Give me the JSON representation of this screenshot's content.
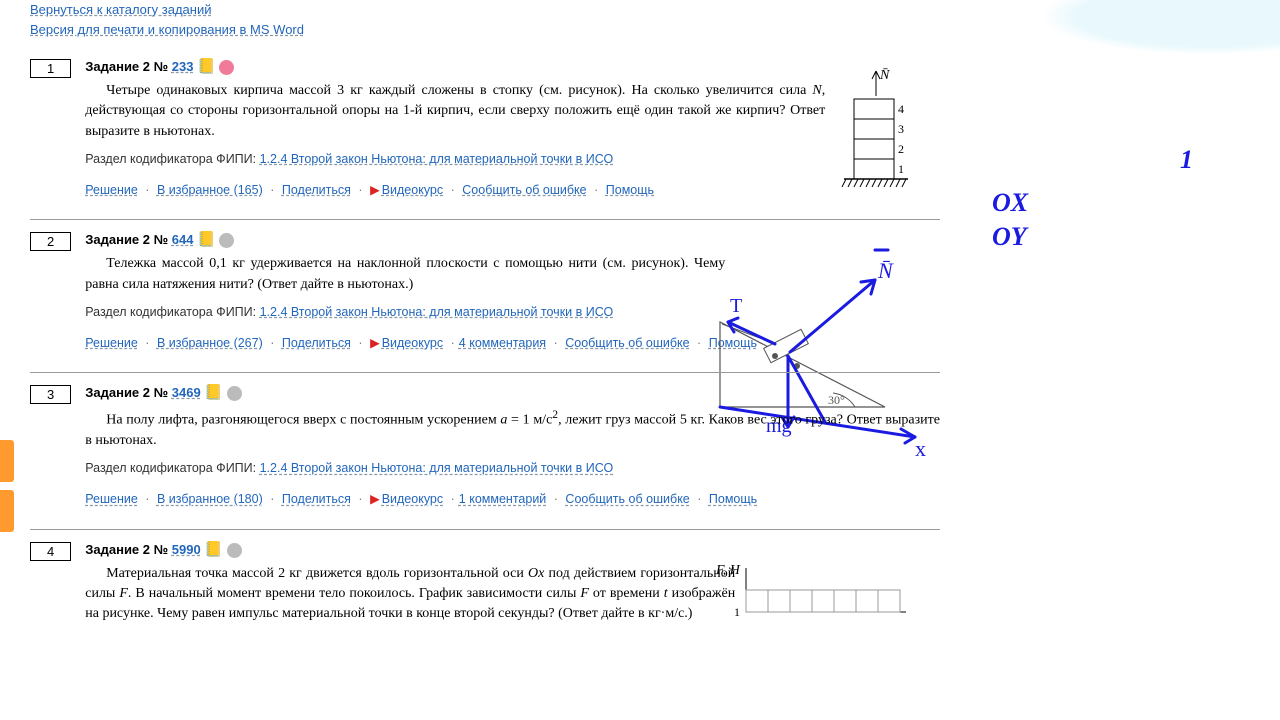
{
  "topLinks": {
    "back": "Вернуться к каталогу заданий",
    "print": "Версия для печати и копирования в MS Word"
  },
  "codifier_prefix": "Раздел кодификатора ФИПИ: ",
  "codifier_link": "1.2.4 Второй закон Ньютона: для материальной точки в ИСО",
  "actions": {
    "solution": "Решение",
    "fav_prefix": "В избранное",
    "share": "Поделиться",
    "video": "Видеокурс",
    "report": "Сообщить об ошибке",
    "help": "Помощь"
  },
  "tasks": [
    {
      "num": "1",
      "label": "Задание 2",
      "id": "233",
      "dot": "red",
      "text": "Четыре одинаковых кирпича массой 3 кг каждый сложены в стопку (см. рисунок). На сколько увеличится сила N, действующая со стороны горизонтальной опоры на 1-й кирпич, если сверху положить ещё один такой же кирпич? Ответ выразите в ньютонах.",
      "fav": "165",
      "comments": ""
    },
    {
      "num": "2",
      "label": "Задание 2",
      "id": "644",
      "dot": "gray",
      "text": "Тележка массой 0,1 кг удерживается на наклонной плоскости с помощью нити (см. рисунок). Чему равна сила натяжения нити? (Ответ дайте в ньютонах.)",
      "fav": "267",
      "comments": "4 комментария"
    },
    {
      "num": "3",
      "label": "Задание 2",
      "id": "3469",
      "dot": "gray",
      "text_html": "На полу лифта, разгоняющегося вверх с постоянным ускорением <span class='math-i'>a</span> = 1 м/с<sup>2</sup>, лежит груз массой 5 кг. Каков вес этого груза? Ответ выразите в ньютонах.",
      "fav": "180",
      "comments": "1 комментарий"
    },
    {
      "num": "4",
      "label": "Задание 2",
      "id": "5990",
      "dot": "gray",
      "text_html": "Материальная точка массой 2 кг движется вдоль горизонтальной оси <span class='math-i'>Ox</span> под действием горизонтальной силы <span class='math-i'>F</span>. В начальный момент времени тело покоилось. График зависимости силы <span class='math-i'>F</span> от времени <span class='math-i'>t</span> изображён на рисунке. Чему равен импульс материальной точки в конце второй секунды? (Ответ дайте в кг·м/с.)",
      "fav": "",
      "comments": ""
    }
  ],
  "annotations": {
    "ox": "OX",
    "oy": "OY",
    "one": "1"
  },
  "figures": {
    "stack_labels": [
      "4",
      "3",
      "2",
      "1"
    ],
    "incline_angle": "30°",
    "graph_ylabel": "F, Н",
    "graph_y1": "1"
  },
  "colors": {
    "link": "#2266bb",
    "ink": "#1a1ae0",
    "side": "#ff9a2e",
    "red_dot": "#ef7a9a",
    "gray_dot": "#bbbbbb"
  }
}
